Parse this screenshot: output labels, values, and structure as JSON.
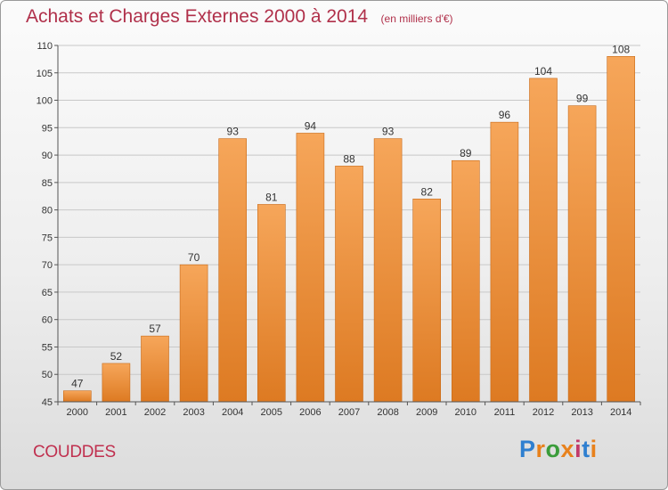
{
  "title": "Achats et Charges Externes 2000 à 2014",
  "unit": "(en milliers d'€)",
  "commune": "COUDDES",
  "logo": {
    "text": "Proxiti",
    "colors": [
      "#2e7fd0",
      "#e8811c",
      "#3a9c3a",
      "#e8811c",
      "#c23a6a",
      "#2e7fd0",
      "#e8811c"
    ]
  },
  "colors": {
    "bar_top": "#f6a65a",
    "bar_bottom": "#dd7a22",
    "bar_edge": "#c86a18",
    "axis": "#555555",
    "grid": "#c8c8c8"
  },
  "chart_data": {
    "type": "bar",
    "title": "Achats et Charges Externes 2000 à 2014",
    "xlabel": "",
    "ylabel": "",
    "ylim": [
      45,
      110
    ],
    "yticks": [
      45,
      50,
      55,
      60,
      65,
      70,
      75,
      80,
      85,
      90,
      95,
      100,
      105,
      110
    ],
    "grid": true,
    "categories": [
      "2000",
      "2001",
      "2002",
      "2003",
      "2004",
      "2005",
      "2006",
      "2007",
      "2008",
      "2009",
      "2010",
      "2011",
      "2012",
      "2013",
      "2014"
    ],
    "values": [
      47,
      52,
      57,
      70,
      93,
      81,
      94,
      88,
      93,
      82,
      89,
      96,
      104,
      99,
      108
    ]
  }
}
